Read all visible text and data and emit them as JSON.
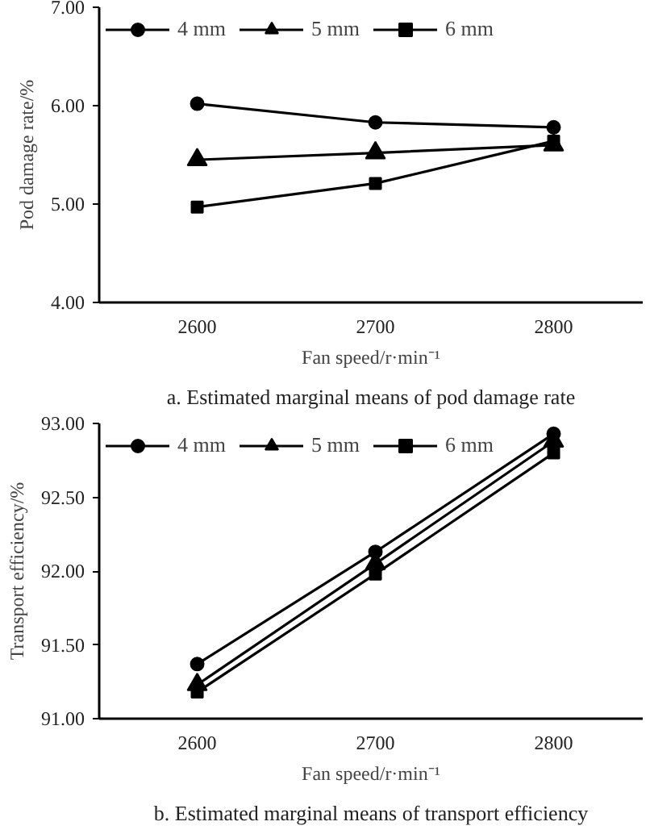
{
  "chart_data": [
    {
      "type": "line",
      "xlabel": "Fan speed/r·min⁻¹",
      "ylabel": "Pod damage rate/%",
      "categories": [
        "2600",
        "2700",
        "2800"
      ],
      "ylim": [
        4,
        7
      ],
      "yticks": [
        {
          "value": 4,
          "label": "4.00"
        },
        {
          "value": 5,
          "label": "5.00"
        },
        {
          "value": 6,
          "label": "6.00"
        },
        {
          "value": 7,
          "label": "7.00"
        }
      ],
      "legend": "top",
      "grid": false,
      "annotations": [
        "a. Estimated marginal means of pod damage rate"
      ],
      "series": [
        {
          "name": "4 mm",
          "color": "#000000",
          "marker": "circle",
          "values": [
            6.02,
            5.83,
            5.78
          ]
        },
        {
          "name": "5 mm",
          "color": "#000000",
          "marker": "triangle",
          "values": [
            5.45,
            5.52,
            5.6
          ]
        },
        {
          "name": "6 mm",
          "color": "#000000",
          "marker": "square",
          "values": [
            4.97,
            5.21,
            5.64
          ]
        }
      ]
    },
    {
      "type": "line",
      "xlabel": "Fan speed/r·min⁻¹",
      "ylabel": "Transport efficiency/%",
      "categories": [
        "2600",
        "2700",
        "2800"
      ],
      "ylim": [
        91,
        93
      ],
      "yticks": [
        {
          "value": 91,
          "label": "91.00"
        },
        {
          "value": 91.5,
          "label": "91.50"
        },
        {
          "value": 92,
          "label": "92.00"
        },
        {
          "value": 92.5,
          "label": "92.50"
        },
        {
          "value": 93,
          "label": "93.00"
        }
      ],
      "legend": "top",
      "grid": false,
      "annotations": [
        "b. Estimated marginal means of transport efficiency"
      ],
      "series": [
        {
          "name": "4 mm",
          "color": "#000000",
          "marker": "circle",
          "values": [
            91.37,
            92.13,
            92.93
          ]
        },
        {
          "name": "5 mm",
          "color": "#000000",
          "marker": "triangle",
          "values": [
            91.23,
            92.05,
            92.88
          ]
        },
        {
          "name": "6 mm",
          "color": "#000000",
          "marker": "square",
          "values": [
            91.18,
            91.98,
            92.8
          ]
        }
      ]
    }
  ]
}
